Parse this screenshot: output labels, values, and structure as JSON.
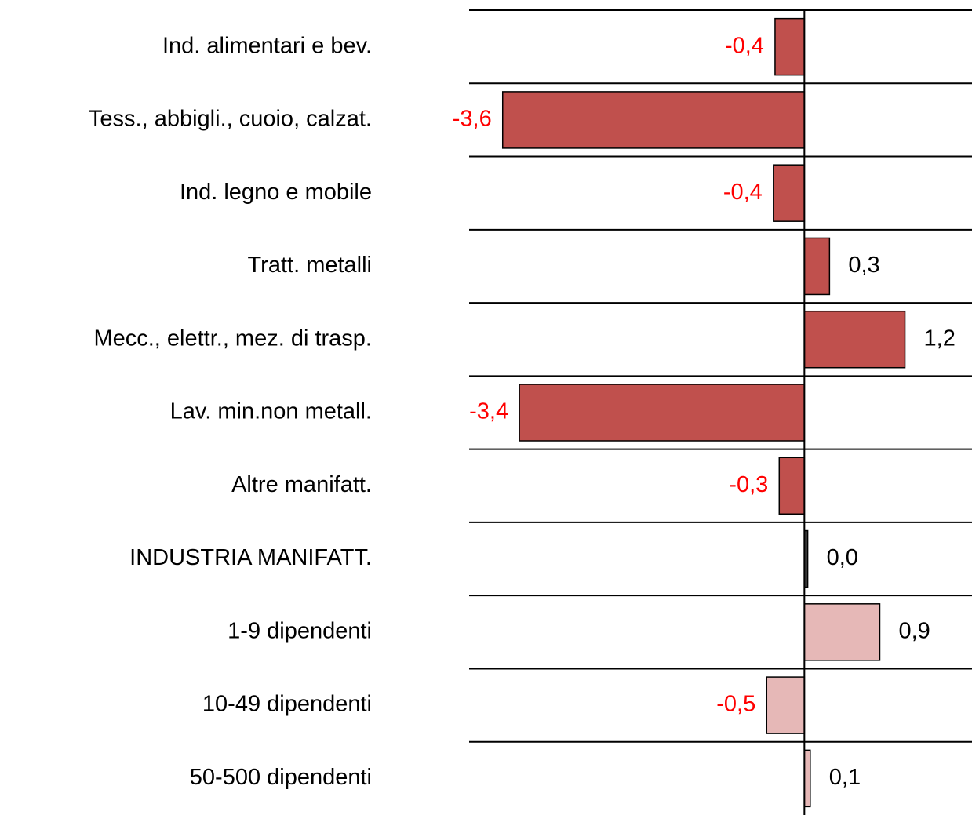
{
  "chart_data": {
    "type": "hbar",
    "categories": [
      "Ind. alimentari e bev.",
      "Tess., abbigli., cuoio, calzat.",
      "Ind. legno e mobile",
      "Tratt. metalli",
      "Mecc., elettr., mez. di trasp.",
      "Lav. min.non metall.",
      "Altre manifatt.",
      "INDUSTRIA MANIFATT.",
      "1-9 dipendenti",
      "10-49 dipendenti",
      "50-500 dipendenti"
    ],
    "values": [
      -0.35,
      -3.6,
      -0.37,
      0.3,
      1.2,
      -3.4,
      -0.3,
      0.04,
      0.9,
      -0.45,
      0.07
    ],
    "value_labels": [
      "-0,4",
      "-3,6",
      "-0,4",
      "0,3",
      "1,2",
      "-3,4",
      "-0,3",
      "0,0",
      "0,9",
      "-0,5",
      "0,1"
    ],
    "colors": [
      "#c0504d",
      "#c0504d",
      "#c0504d",
      "#c0504d",
      "#c0504d",
      "#c0504d",
      "#c0504d",
      "#404040",
      "#e6b8b7",
      "#e6b8b7",
      "#e6b8b7"
    ],
    "negative_label_color": "#ff0000",
    "positive_label_color": "#000000",
    "xlim": [
      -4,
      2
    ],
    "grid": true
  }
}
